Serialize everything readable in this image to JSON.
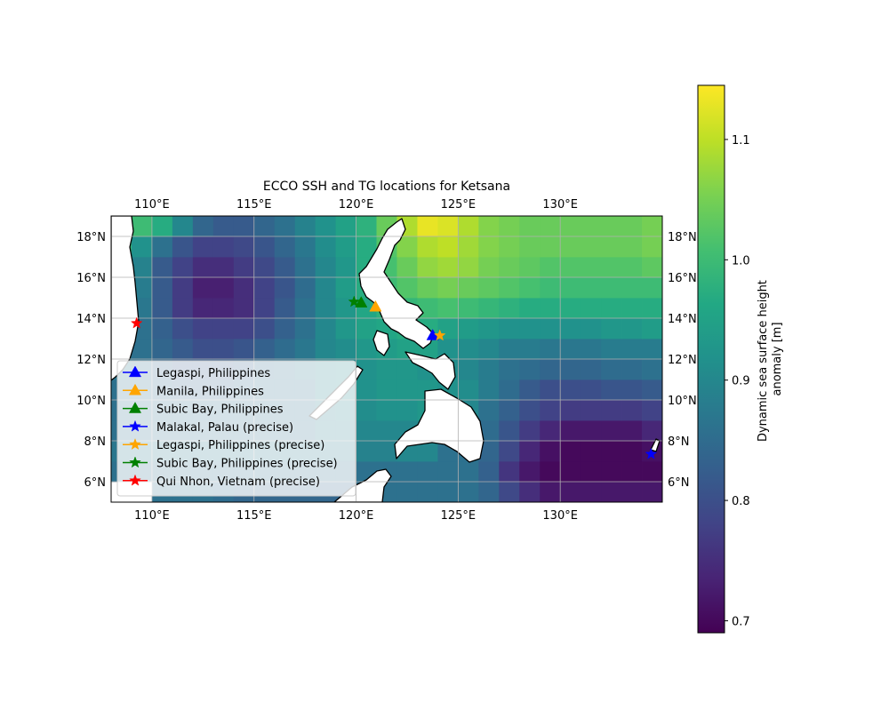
{
  "title": "ECCO SSH and TG locations for Ketsana",
  "x_ticks": [
    "110°E",
    "115°E",
    "120°E",
    "125°E",
    "130°E"
  ],
  "x_tick_values": [
    110,
    115,
    120,
    125,
    130
  ],
  "y_ticks": [
    "18°N",
    "16°N",
    "14°N",
    "12°N",
    "10°N",
    "8°N",
    "6°N"
  ],
  "y_tick_values": [
    18,
    16,
    14,
    12,
    10,
    8,
    6
  ],
  "map_extent": {
    "lon": [
      108,
      135
    ],
    "lat": [
      5,
      19
    ]
  },
  "colorbar": {
    "label_line1": "Dynamic sea surface height",
    "label_line2": "anomaly [m]",
    "range": [
      0.69,
      1.145
    ],
    "ticks": [
      "0.7",
      "0.8",
      "0.9",
      "1.0",
      "1.1"
    ],
    "tick_values": [
      0.7,
      0.8,
      0.9,
      1.0,
      1.1
    ],
    "colormap": "viridis"
  },
  "legend": {
    "placement": "lower-left",
    "entries": [
      {
        "label": "Legaspi, Philippines",
        "color": "#0000ff",
        "marker": "triangle"
      },
      {
        "label": "Manila, Philippines",
        "color": "#ffa500",
        "marker": "triangle"
      },
      {
        "label": "Subic Bay, Philippines",
        "color": "#008000",
        "marker": "triangle"
      },
      {
        "label": "Malakal, Palau (precise)",
        "color": "#0000ff",
        "marker": "star"
      },
      {
        "label": "Legaspi, Philippines (precise)",
        "color": "#ffa500",
        "marker": "star"
      },
      {
        "label": "Subic Bay, Philippines (precise)",
        "color": "#008000",
        "marker": "star"
      },
      {
        "label": "Qui Nhon, Vietnam (precise)",
        "color": "#ff0000",
        "marker": "star"
      }
    ]
  },
  "chart_data": {
    "type": "heatmap",
    "title": "ECCO SSH and TG locations for Ketsana",
    "x_range": [
      108,
      135
    ],
    "y_range": [
      5,
      19
    ],
    "value_range": [
      0.69,
      1.145
    ],
    "grid": true,
    "stations": [
      {
        "name": "Legaspi, Philippines",
        "lon": 123.75,
        "lat": 13.15,
        "marker": "triangle",
        "color": "#0000ff"
      },
      {
        "name": "Manila, Philippines",
        "lon": 120.95,
        "lat": 14.55,
        "marker": "triangle",
        "color": "#ffa500"
      },
      {
        "name": "Subic Bay, Philippines",
        "lon": 120.25,
        "lat": 14.75,
        "marker": "triangle",
        "color": "#008000"
      },
      {
        "name": "Malakal, Palau (precise)",
        "lon": 134.45,
        "lat": 7.35,
        "marker": "star",
        "color": "#0000ff"
      },
      {
        "name": "Legaspi, Philippines (precise)",
        "lon": 124.1,
        "lat": 13.15,
        "marker": "star",
        "color": "#ffa500"
      },
      {
        "name": "Subic Bay, Philippines (precise)",
        "lon": 119.9,
        "lat": 14.8,
        "marker": "star",
        "color": "#008000"
      },
      {
        "name": "Qui Nhon, Vietnam (precise)",
        "lon": 109.25,
        "lat": 13.75,
        "marker": "star",
        "color": "#ff0000"
      }
    ],
    "ssh_grid": {
      "lon0": 108,
      "lat0": 5,
      "dlon": 1,
      "dlat": 1,
      "rows_from_south": [
        [
          null,
          null,
          0.86,
          0.86,
          0.86,
          0.85,
          0.84,
          0.84,
          0.84,
          0.84,
          0.84,
          0.84,
          0.86,
          0.86,
          0.86,
          0.86,
          0.86,
          0.86,
          0.84,
          0.79,
          0.75,
          0.72,
          0.72,
          0.72,
          0.72,
          0.72,
          0.72
        ],
        [
          0.86,
          0.86,
          0.86,
          0.86,
          0.86,
          0.86,
          0.86,
          0.86,
          0.86,
          0.86,
          0.86,
          0.86,
          0.86,
          0.86,
          0.86,
          0.86,
          0.86,
          0.86,
          0.83,
          0.76,
          0.72,
          0.7,
          0.7,
          0.7,
          0.7,
          0.7,
          0.7
        ],
        [
          0.87,
          0.87,
          0.87,
          0.87,
          0.87,
          0.87,
          0.87,
          0.87,
          0.87,
          0.87,
          0.87,
          0.87,
          0.89,
          0.89,
          0.9,
          0.9,
          0.86,
          0.86,
          0.84,
          0.79,
          0.74,
          0.71,
          0.7,
          0.7,
          0.7,
          0.7,
          0.71
        ],
        [
          0.86,
          0.86,
          0.86,
          0.86,
          0.86,
          0.86,
          0.86,
          0.86,
          0.86,
          0.86,
          0.88,
          0.88,
          0.9,
          0.9,
          0.9,
          0.9,
          0.9,
          0.88,
          0.85,
          0.81,
          0.77,
          0.74,
          0.72,
          0.72,
          0.72,
          0.72,
          0.74
        ],
        [
          0.86,
          0.86,
          0.86,
          0.86,
          0.86,
          0.86,
          0.86,
          0.86,
          0.86,
          0.86,
          0.88,
          0.89,
          0.91,
          0.92,
          0.92,
          0.93,
          0.92,
          0.9,
          0.86,
          0.83,
          0.8,
          0.78,
          0.77,
          0.77,
          0.77,
          0.77,
          0.78
        ],
        [
          0.86,
          0.86,
          0.85,
          0.84,
          0.84,
          0.84,
          0.85,
          0.86,
          0.86,
          0.86,
          0.89,
          0.9,
          0.92,
          0.93,
          0.93,
          0.93,
          0.92,
          0.91,
          0.88,
          0.85,
          0.82,
          0.8,
          0.8,
          0.8,
          0.81,
          0.81,
          0.82
        ],
        [
          0.87,
          0.86,
          0.84,
          0.82,
          0.82,
          0.82,
          0.83,
          0.85,
          0.86,
          0.87,
          0.89,
          0.9,
          0.92,
          0.93,
          0.93,
          0.92,
          0.91,
          0.9,
          0.88,
          0.86,
          0.85,
          0.84,
          0.84,
          0.84,
          0.85,
          0.85,
          0.86
        ],
        [
          0.87,
          0.86,
          0.84,
          0.82,
          0.8,
          0.8,
          0.81,
          0.83,
          0.85,
          0.87,
          0.9,
          0.91,
          0.93,
          0.94,
          0.95,
          0.95,
          0.92,
          0.91,
          0.9,
          0.88,
          0.88,
          0.87,
          0.87,
          0.87,
          0.88,
          0.88,
          0.88
        ],
        [
          0.9,
          0.86,
          0.83,
          0.8,
          0.78,
          0.78,
          0.78,
          0.8,
          0.83,
          0.86,
          0.9,
          0.93,
          0.95,
          0.96,
          0.97,
          0.97,
          0.95,
          0.94,
          0.93,
          0.92,
          0.92,
          0.92,
          0.92,
          0.92,
          0.93,
          0.93,
          0.94
        ],
        [
          0.93,
          0.87,
          0.82,
          0.77,
          0.74,
          0.74,
          0.75,
          0.78,
          0.82,
          0.86,
          0.9,
          0.93,
          0.96,
          0.98,
          0.99,
          1.0,
          1.01,
          1.0,
          0.99,
          0.98,
          0.97,
          0.97,
          0.97,
          0.97,
          0.97,
          0.97,
          0.97
        ],
        [
          0.95,
          0.88,
          0.82,
          0.77,
          0.73,
          0.73,
          0.75,
          0.78,
          0.81,
          0.85,
          0.9,
          0.94,
          0.97,
          1.0,
          1.02,
          1.04,
          1.05,
          1.04,
          1.03,
          1.02,
          1.01,
          1.0,
          1.0,
          1.0,
          1.0,
          1.0,
          1.0
        ],
        [
          0.97,
          0.89,
          0.82,
          0.78,
          0.75,
          0.75,
          0.77,
          0.79,
          0.82,
          0.86,
          0.9,
          0.93,
          0.97,
          1.01,
          1.04,
          1.07,
          1.08,
          1.07,
          1.05,
          1.04,
          1.03,
          1.02,
          1.02,
          1.02,
          1.02,
          1.02,
          1.03
        ],
        [
          0.99,
          0.92,
          0.86,
          0.81,
          0.78,
          0.78,
          0.79,
          0.81,
          0.84,
          0.87,
          0.91,
          0.94,
          0.97,
          1.02,
          1.06,
          1.09,
          1.1,
          1.08,
          1.06,
          1.05,
          1.04,
          1.04,
          1.04,
          1.04,
          1.04,
          1.04,
          1.05
        ],
        [
          1.0,
          1.0,
          0.97,
          0.9,
          0.84,
          0.82,
          0.82,
          0.84,
          0.86,
          0.89,
          0.92,
          0.95,
          0.98,
          1.04,
          1.09,
          1.13,
          1.12,
          1.09,
          1.06,
          1.05,
          1.04,
          1.04,
          1.04,
          1.04,
          1.04,
          1.04,
          1.05
        ]
      ]
    }
  }
}
